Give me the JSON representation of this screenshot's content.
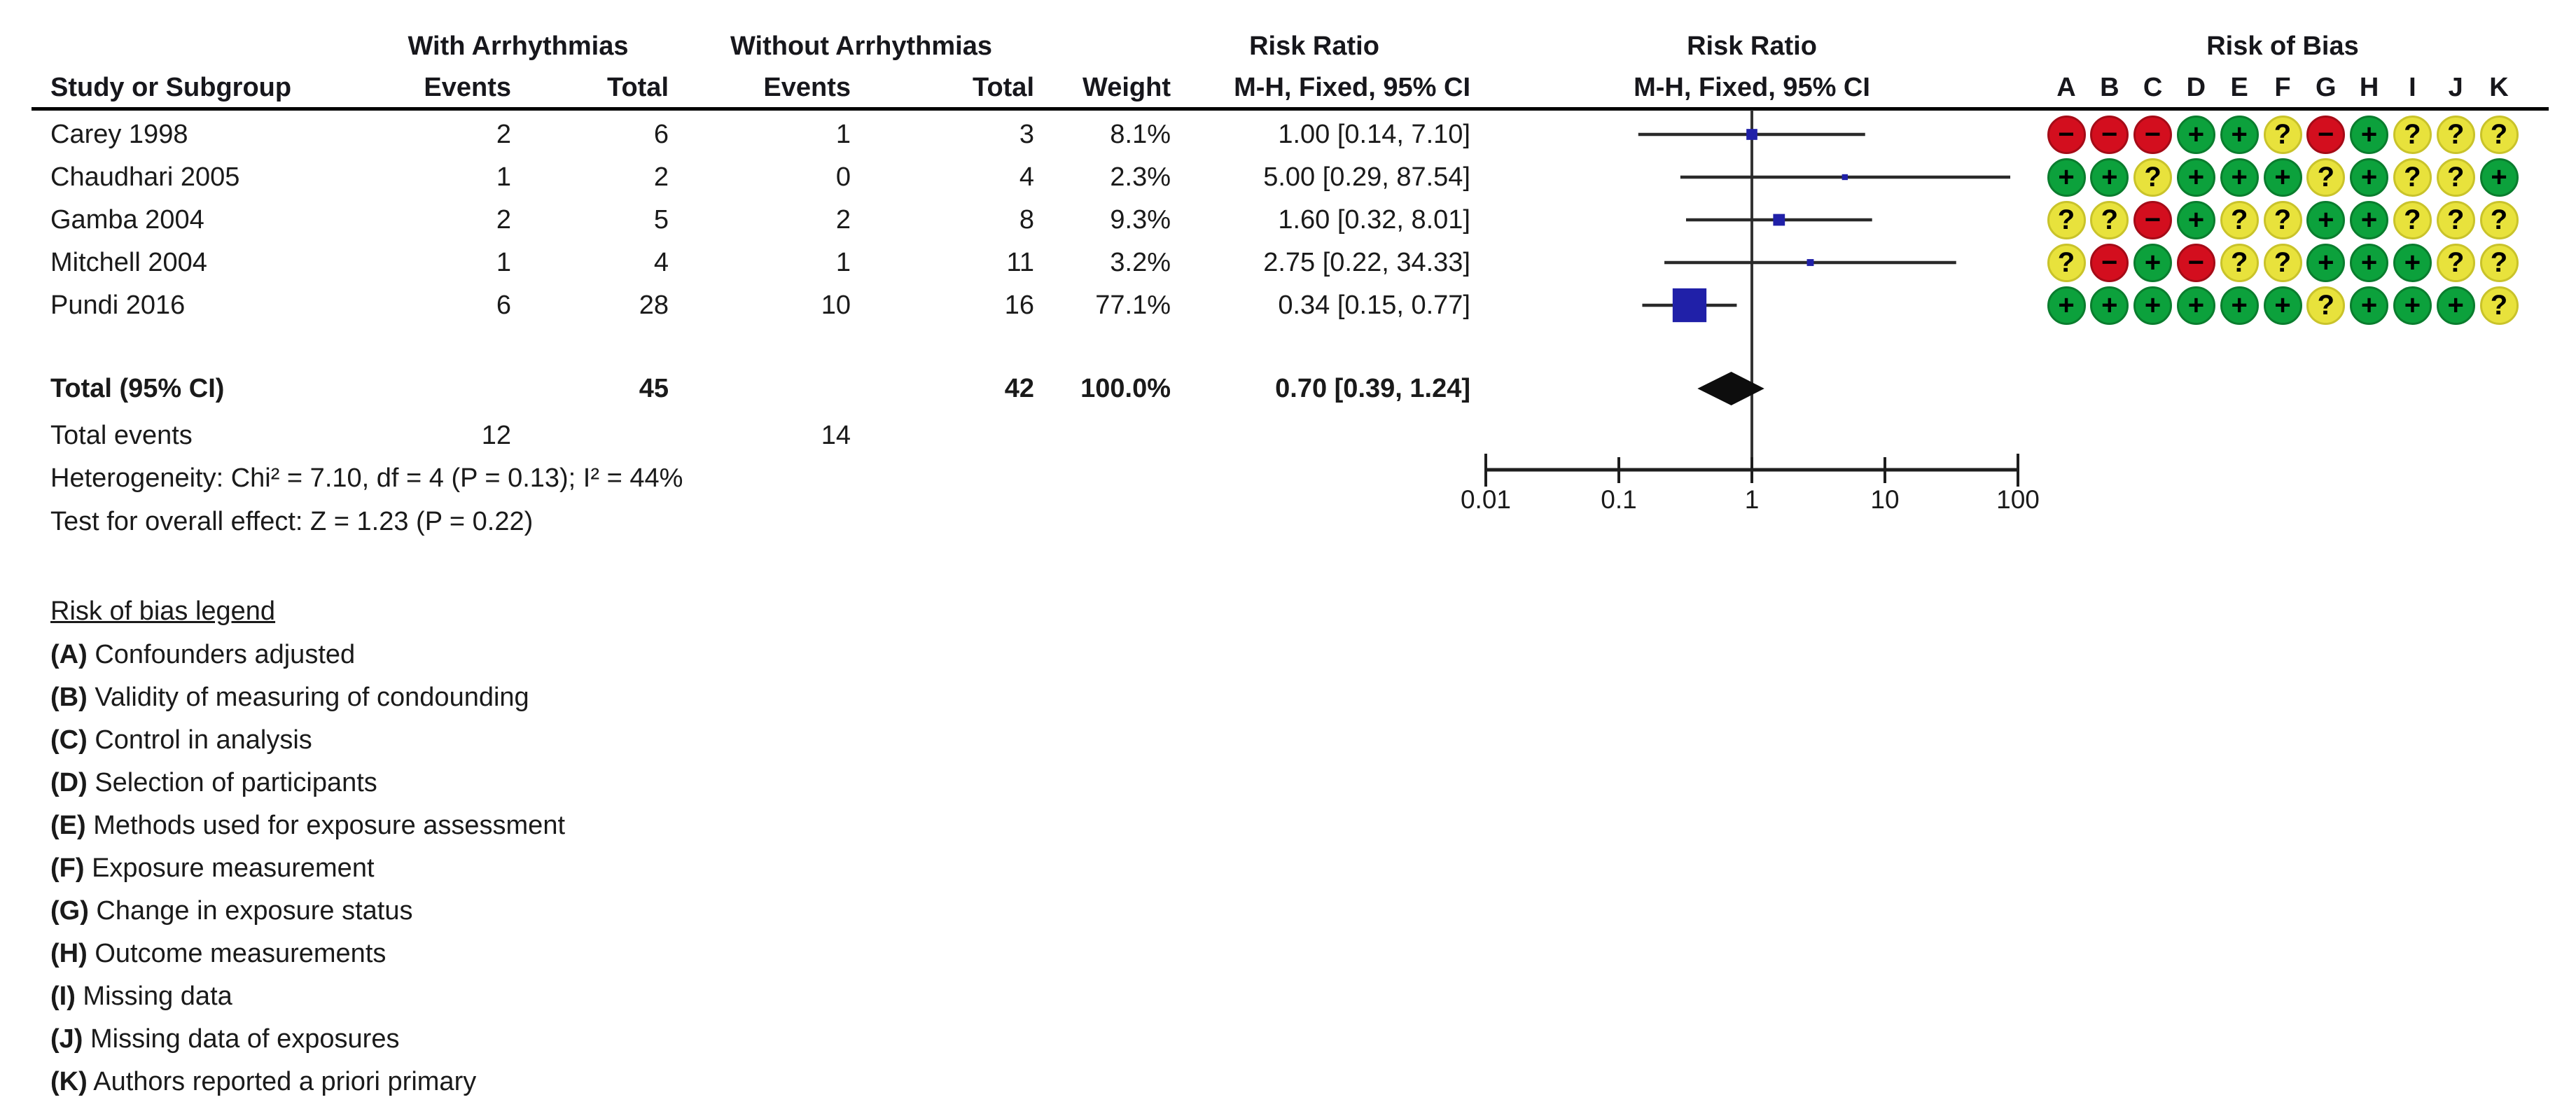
{
  "table": {
    "group_headers": {
      "with": "With Arrhythmias",
      "without": "Without Arrhythmias",
      "risk_ratio_text": "Risk Ratio",
      "risk_ratio_plot": "Risk Ratio",
      "risk_of_bias": "Risk of Bias"
    },
    "col_headers": {
      "study": "Study or Subgroup",
      "events1": "Events",
      "total1": "Total",
      "events2": "Events",
      "total2": "Total",
      "weight": "Weight",
      "mh_ci_text": "M-H, Fixed, 95% CI",
      "mh_ci_plot": "M-H, Fixed, 95% CI"
    },
    "rob_letters": [
      "A",
      "B",
      "C",
      "D",
      "E",
      "F",
      "G",
      "H",
      "I",
      "J",
      "K"
    ],
    "studies": [
      {
        "name": "Carey 1998",
        "events1": "2",
        "total1": "6",
        "events2": "1",
        "total2": "3",
        "weight": "8.1%",
        "rr_text": "1.00 [0.14, 7.10]",
        "rob": [
          "-",
          "-",
          "-",
          "+",
          "+",
          "?",
          "-",
          "+",
          "?",
          "?",
          "?"
        ]
      },
      {
        "name": "Chaudhari 2005",
        "events1": "1",
        "total1": "2",
        "events2": "0",
        "total2": "4",
        "weight": "2.3%",
        "rr_text": "5.00 [0.29, 87.54]",
        "rob": [
          "+",
          "+",
          "?",
          "+",
          "+",
          "+",
          "?",
          "+",
          "?",
          "?",
          "+"
        ]
      },
      {
        "name": "Gamba 2004",
        "events1": "2",
        "total1": "5",
        "events2": "2",
        "total2": "8",
        "weight": "9.3%",
        "rr_text": "1.60 [0.32, 8.01]",
        "rob": [
          "?",
          "?",
          "-",
          "+",
          "?",
          "?",
          "+",
          "+",
          "?",
          "?",
          "?"
        ]
      },
      {
        "name": "Mitchell 2004",
        "events1": "1",
        "total1": "4",
        "events2": "1",
        "total2": "11",
        "weight": "3.2%",
        "rr_text": "2.75 [0.22, 34.33]",
        "rob": [
          "?",
          "-",
          "+",
          "-",
          "?",
          "?",
          "+",
          "+",
          "+",
          "?",
          "?"
        ]
      },
      {
        "name": "Pundi 2016",
        "events1": "6",
        "total1": "28",
        "events2": "10",
        "total2": "16",
        "weight": "77.1%",
        "rr_text": "0.34 [0.15, 0.77]",
        "rob": [
          "+",
          "+",
          "+",
          "+",
          "+",
          "+",
          "?",
          "+",
          "+",
          "+",
          "?"
        ]
      }
    ],
    "totals": {
      "label": "Total (95% CI)",
      "total1": "45",
      "total2": "42",
      "weight": "100.0%",
      "rr_text": "0.70 [0.39, 1.24]"
    },
    "total_events": {
      "label": "Total events",
      "events1": "12",
      "events2": "14"
    },
    "heterogeneity": "Heterogeneity: Chi² = 7.10, df = 4 (P = 0.13); I² = 44%",
    "overall_effect": "Test for overall effect: Z = 1.23 (P = 0.22)"
  },
  "axis": {
    "tick_labels": [
      "0.01",
      "0.1",
      "1",
      "10",
      "100"
    ],
    "tick_values": [
      0.01,
      0.1,
      1,
      10,
      100
    ]
  },
  "legend": {
    "title": "Risk of bias legend",
    "items": [
      {
        "key": "(A)",
        "text": "Confounders adjusted"
      },
      {
        "key": "(B)",
        "text": "Validity of measuring of condounding"
      },
      {
        "key": "(C)",
        "text": "Control in analysis"
      },
      {
        "key": "(D)",
        "text": "Selection of participants"
      },
      {
        "key": "(E)",
        "text": "Methods used for exposure assessment"
      },
      {
        "key": "(F)",
        "text": "Exposure measurement"
      },
      {
        "key": "(G)",
        "text": "Change in exposure status"
      },
      {
        "key": "(H)",
        "text": "Outcome measurements"
      },
      {
        "key": "(I)",
        "text": "Missing data"
      },
      {
        "key": "(J)",
        "text": "Missing data of exposures"
      },
      {
        "key": "(K)",
        "text": "Authors reported a priori primary"
      }
    ]
  },
  "colors": {
    "square_blue": "#2020A8",
    "ci_line": "#2a2a2a",
    "diamond_black": "#0d0d0d",
    "rob_green": "#0CA13C",
    "rob_green_edge": "#0a7d2e",
    "rob_yellow": "#E8E23C",
    "rob_yellow_edge": "#c9c32a",
    "rob_red": "#D30E1E",
    "rob_red_edge": "#a50b17",
    "text": "#1a1a1a"
  },
  "chart_data": {
    "type": "scatter",
    "subtype": "forest_plot",
    "title": "Risk Ratio",
    "effect_measure": "M-H, Fixed, 95% CI",
    "x_scale": "log10",
    "x_range": [
      0.01,
      100
    ],
    "x_ticks": [
      0.01,
      0.1,
      1,
      10,
      100
    ],
    "studies": [
      {
        "name": "Carey 1998",
        "rr": 1.0,
        "ci_low": 0.14,
        "ci_high": 7.1,
        "weight_pct": 8.1
      },
      {
        "name": "Chaudhari 2005",
        "rr": 5.0,
        "ci_low": 0.29,
        "ci_high": 87.54,
        "weight_pct": 2.3
      },
      {
        "name": "Gamba 2004",
        "rr": 1.6,
        "ci_low": 0.32,
        "ci_high": 8.01,
        "weight_pct": 9.3
      },
      {
        "name": "Mitchell 2004",
        "rr": 2.75,
        "ci_low": 0.22,
        "ci_high": 34.33,
        "weight_pct": 3.2
      },
      {
        "name": "Pundi 2016",
        "rr": 0.34,
        "ci_low": 0.15,
        "ci_high": 0.77,
        "weight_pct": 77.1
      }
    ],
    "total": {
      "label": "Total (95% CI)",
      "rr": 0.7,
      "ci_low": 0.39,
      "ci_high": 1.24,
      "weight_pct": 100.0
    }
  }
}
